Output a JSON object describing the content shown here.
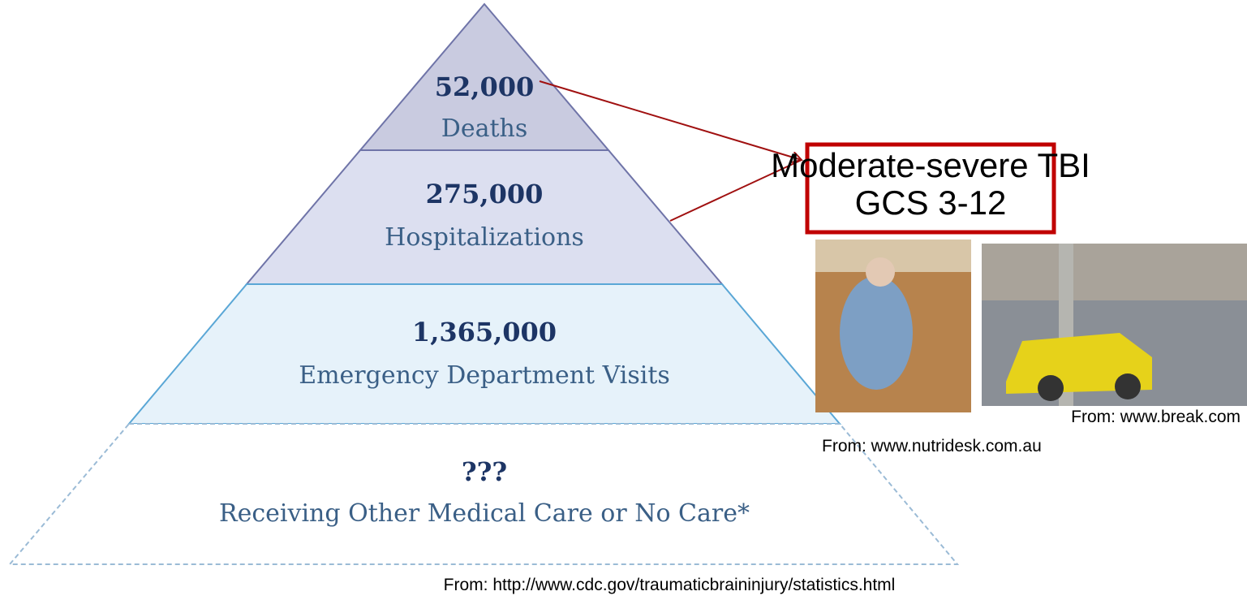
{
  "pyramid": {
    "levels": [
      {
        "count": "52,000",
        "label": "Deaths"
      },
      {
        "count": "275,000",
        "label": "Hospitalizations"
      },
      {
        "count": "1,365,000",
        "label": "Emergency Department Visits"
      },
      {
        "count": "???",
        "label": "Receiving Other Medical Care or No Care*"
      }
    ]
  },
  "callout": {
    "lines": [
      "Moderate-severe TBI",
      "GCS 3-12"
    ]
  },
  "photos": [
    {
      "caption": "From: www.nutridesk.com.au"
    },
    {
      "caption": "From: www.break.com"
    }
  ],
  "source": "From: http://www.cdc.gov/traumaticbraininjury/statistics.html"
}
